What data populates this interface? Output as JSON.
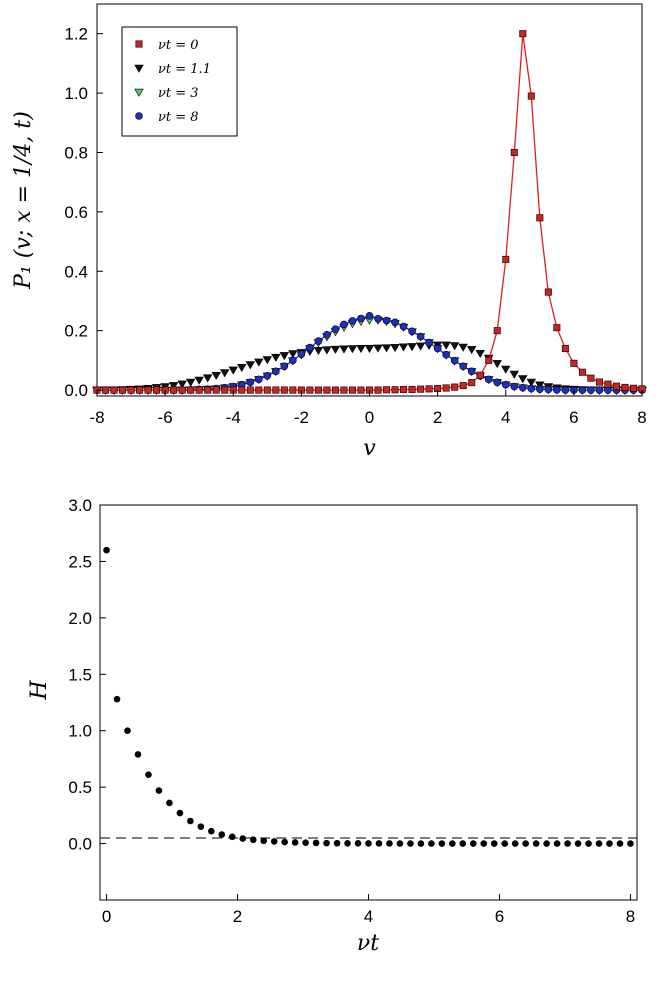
{
  "chart_data": [
    {
      "type": "scatter",
      "title": "",
      "xlabel": "v",
      "ylabel": "P₁ (v; x = 1/4, t)",
      "xlim": [
        -8,
        8
      ],
      "ylim": [
        -0.02,
        1.3
      ],
      "xticks": [
        "-8",
        "-6",
        "-4",
        "-2",
        "0",
        "2",
        "4",
        "6",
        "8"
      ],
      "yticks": [
        "0.0",
        "0.2",
        "0.4",
        "0.6",
        "0.8",
        "1.0",
        "1.2"
      ],
      "legend_position": "top-left",
      "grid": false,
      "series": [
        {
          "name": "νt = 0",
          "marker": "square",
          "fill": "#cc2222",
          "line": true,
          "line_color": "#e02020",
          "x": [
            -8.0,
            -7.75,
            -7.5,
            -7.25,
            -7.0,
            -6.75,
            -6.5,
            -6.25,
            -6.0,
            -5.75,
            -5.5,
            -5.25,
            -5.0,
            -4.75,
            -4.5,
            -4.25,
            -4.0,
            -3.75,
            -3.5,
            -3.25,
            -3.0,
            -2.75,
            -2.5,
            -2.25,
            -2.0,
            -1.75,
            -1.5,
            -1.25,
            -1.0,
            -0.75,
            -0.5,
            -0.25,
            0.0,
            0.25,
            0.5,
            0.75,
            1.0,
            1.25,
            1.5,
            1.75,
            2.0,
            2.25,
            2.5,
            2.75,
            3.0,
            3.25,
            3.5,
            3.75,
            4.0,
            4.25,
            4.5,
            4.75,
            5.0,
            5.25,
            5.5,
            5.75,
            6.0,
            6.25,
            6.5,
            6.75,
            7.0,
            7.25,
            7.5,
            7.75,
            8.0
          ],
          "y": [
            0,
            0,
            0,
            0,
            0,
            0,
            0,
            0,
            0,
            0,
            0,
            0,
            0,
            0,
            0,
            0,
            0,
            0,
            0,
            0,
            0,
            0,
            0,
            0,
            0,
            0,
            0,
            0,
            0,
            0,
            0,
            0,
            0,
            0,
            0.001,
            0.001,
            0.002,
            0.002,
            0.003,
            0.004,
            0.005,
            0.007,
            0.01,
            0.015,
            0.025,
            0.05,
            0.1,
            0.2,
            0.44,
            0.8,
            1.2,
            0.99,
            0.58,
            0.33,
            0.21,
            0.14,
            0.09,
            0.06,
            0.04,
            0.027,
            0.02,
            0.013,
            0.009,
            0.006,
            0.004
          ]
        },
        {
          "name": "νt = 1.1",
          "marker": "triangle-down",
          "fill": "#111111",
          "line": false,
          "x": [
            -8.0,
            -7.75,
            -7.5,
            -7.25,
            -7.0,
            -6.75,
            -6.5,
            -6.25,
            -6.0,
            -5.75,
            -5.5,
            -5.25,
            -5.0,
            -4.75,
            -4.5,
            -4.25,
            -4.0,
            -3.75,
            -3.5,
            -3.25,
            -3.0,
            -2.75,
            -2.5,
            -2.25,
            -2.0,
            -1.75,
            -1.5,
            -1.25,
            -1.0,
            -0.75,
            -0.5,
            -0.25,
            0.0,
            0.25,
            0.5,
            0.75,
            1.0,
            1.25,
            1.5,
            1.75,
            2.0,
            2.25,
            2.5,
            2.75,
            3.0,
            3.25,
            3.5,
            3.75,
            4.0,
            4.25,
            4.5,
            4.75,
            5.0,
            5.25,
            5.5,
            5.75,
            6.0,
            6.25,
            6.5,
            6.75,
            7.0,
            7.25,
            7.5,
            7.75,
            8.0
          ],
          "y": [
            0.001,
            0.001,
            0.001,
            0.002,
            0.003,
            0.004,
            0.006,
            0.009,
            0.012,
            0.016,
            0.021,
            0.027,
            0.034,
            0.042,
            0.05,
            0.059,
            0.068,
            0.077,
            0.086,
            0.095,
            0.103,
            0.111,
            0.117,
            0.123,
            0.127,
            0.131,
            0.134,
            0.136,
            0.138,
            0.139,
            0.14,
            0.141,
            0.141,
            0.142,
            0.143,
            0.144,
            0.146,
            0.147,
            0.149,
            0.151,
            0.152,
            0.152,
            0.15,
            0.145,
            0.137,
            0.124,
            0.108,
            0.09,
            0.071,
            0.054,
            0.039,
            0.027,
            0.018,
            0.012,
            0.008,
            0.005,
            0.003,
            0.002,
            0.001,
            0.001,
            0.001,
            0,
            0,
            0,
            0
          ]
        },
        {
          "name": "νt = 3",
          "marker": "triangle-down",
          "fill": "#55cc55",
          "line": false,
          "x": [
            -8.0,
            -7.75,
            -7.5,
            -7.25,
            -7.0,
            -6.75,
            -6.5,
            -6.25,
            -6.0,
            -5.75,
            -5.5,
            -5.25,
            -5.0,
            -4.75,
            -4.5,
            -4.25,
            -4.0,
            -3.75,
            -3.5,
            -3.25,
            -3.0,
            -2.75,
            -2.5,
            -2.25,
            -2.0,
            -1.75,
            -1.5,
            -1.25,
            -1.0,
            -0.75,
            -0.5,
            -0.25,
            0.0,
            0.25,
            0.5,
            0.75,
            1.0,
            1.25,
            1.5,
            1.75,
            2.0,
            2.25,
            2.5,
            2.75,
            3.0,
            3.25,
            3.5,
            3.75,
            4.0,
            4.25,
            4.5,
            4.75,
            5.0,
            5.25,
            5.5,
            5.75,
            6.0,
            6.25,
            6.5,
            6.75,
            7.0,
            7.25,
            7.5,
            7.75,
            8.0
          ],
          "y": [
            0,
            0,
            0,
            0,
            0,
            0,
            0,
            0,
            0,
            0,
            0,
            0.001,
            0.002,
            0.003,
            0.005,
            0.008,
            0.012,
            0.018,
            0.026,
            0.036,
            0.048,
            0.063,
            0.08,
            0.099,
            0.119,
            0.14,
            0.16,
            0.18,
            0.197,
            0.212,
            0.224,
            0.232,
            0.236,
            0.236,
            0.232,
            0.224,
            0.212,
            0.197,
            0.18,
            0.16,
            0.14,
            0.119,
            0.099,
            0.08,
            0.063,
            0.048,
            0.036,
            0.026,
            0.018,
            0.012,
            0.008,
            0.005,
            0.003,
            0.002,
            0.001,
            0,
            0,
            0,
            0,
            0,
            0,
            0,
            0,
            0,
            0
          ]
        },
        {
          "name": "νt = 8",
          "marker": "circle",
          "fill": "#1e2fbf",
          "line": true,
          "line_color": "#1e2fbf",
          "x": [
            -8.0,
            -7.75,
            -7.5,
            -7.25,
            -7.0,
            -6.75,
            -6.5,
            -6.25,
            -6.0,
            -5.75,
            -5.5,
            -5.25,
            -5.0,
            -4.75,
            -4.5,
            -4.25,
            -4.0,
            -3.75,
            -3.5,
            -3.25,
            -3.0,
            -2.75,
            -2.5,
            -2.25,
            -2.0,
            -1.75,
            -1.5,
            -1.25,
            -1.0,
            -0.75,
            -0.5,
            -0.25,
            0.0,
            0.25,
            0.5,
            0.75,
            1.0,
            1.25,
            1.5,
            1.75,
            2.0,
            2.25,
            2.5,
            2.75,
            3.0,
            3.25,
            3.5,
            3.75,
            4.0,
            4.25,
            4.5,
            4.75,
            5.0,
            5.25,
            5.5,
            5.75,
            6.0,
            6.25,
            6.5,
            6.75,
            7.0,
            7.25,
            7.5,
            7.75,
            8.0
          ],
          "y": [
            0,
            0,
            0,
            0,
            0,
            0,
            0,
            0,
            0,
            0,
            0,
            0.001,
            0.002,
            0.003,
            0.005,
            0.008,
            0.012,
            0.018,
            0.026,
            0.036,
            0.048,
            0.063,
            0.08,
            0.1,
            0.121,
            0.143,
            0.165,
            0.186,
            0.205,
            0.221,
            0.233,
            0.241,
            0.25,
            0.24,
            0.234,
            0.228,
            0.214,
            0.198,
            0.18,
            0.16,
            0.14,
            0.119,
            0.099,
            0.08,
            0.063,
            0.048,
            0.036,
            0.026,
            0.018,
            0.012,
            0.008,
            0.005,
            0.003,
            0.002,
            0.001,
            0,
            0,
            0,
            0,
            0,
            0,
            0,
            0,
            0,
            0
          ]
        }
      ]
    },
    {
      "type": "scatter",
      "title": "",
      "xlabel": "νt",
      "ylabel": "H",
      "xlim": [
        -0.1,
        8.1
      ],
      "ylim": [
        -0.5,
        3.0
      ],
      "xticks": [
        "0",
        "2",
        "4",
        "6",
        "8"
      ],
      "yticks": [
        "0.0",
        "0.5",
        "1.0",
        "1.5",
        "2.0",
        "2.5",
        "3.0"
      ],
      "grid": false,
      "reference_line": {
        "y": 0,
        "style": "dashed"
      },
      "series": [
        {
          "marker": "circle",
          "fill": "#000000",
          "x": [
            0.0,
            0.16,
            0.32,
            0.48,
            0.64,
            0.8,
            0.96,
            1.12,
            1.28,
            1.44,
            1.6,
            1.76,
            1.92,
            2.08,
            2.24,
            2.4,
            2.56,
            2.72,
            2.88,
            3.04,
            3.2,
            3.36,
            3.52,
            3.68,
            3.84,
            4.0,
            4.16,
            4.32,
            4.48,
            4.64,
            4.8,
            4.96,
            5.12,
            5.28,
            5.44,
            5.6,
            5.76,
            5.92,
            6.08,
            6.24,
            6.4,
            6.56,
            6.72,
            6.88,
            7.04,
            7.2,
            7.36,
            7.52,
            7.68,
            7.84,
            8.0
          ],
          "y": [
            2.6,
            1.28,
            1.0,
            0.79,
            0.61,
            0.47,
            0.36,
            0.27,
            0.2,
            0.15,
            0.11,
            0.08,
            0.06,
            0.045,
            0.034,
            0.025,
            0.019,
            0.014,
            0.01,
            0.008,
            0.006,
            0.004,
            0.003,
            0.002,
            0.002,
            0.001,
            0.001,
            0.001,
            0,
            0,
            0,
            0,
            0,
            0,
            0,
            0,
            0,
            0,
            0,
            0,
            0,
            0,
            0,
            0,
            0,
            0,
            0,
            0,
            0,
            0,
            0
          ]
        }
      ]
    }
  ]
}
